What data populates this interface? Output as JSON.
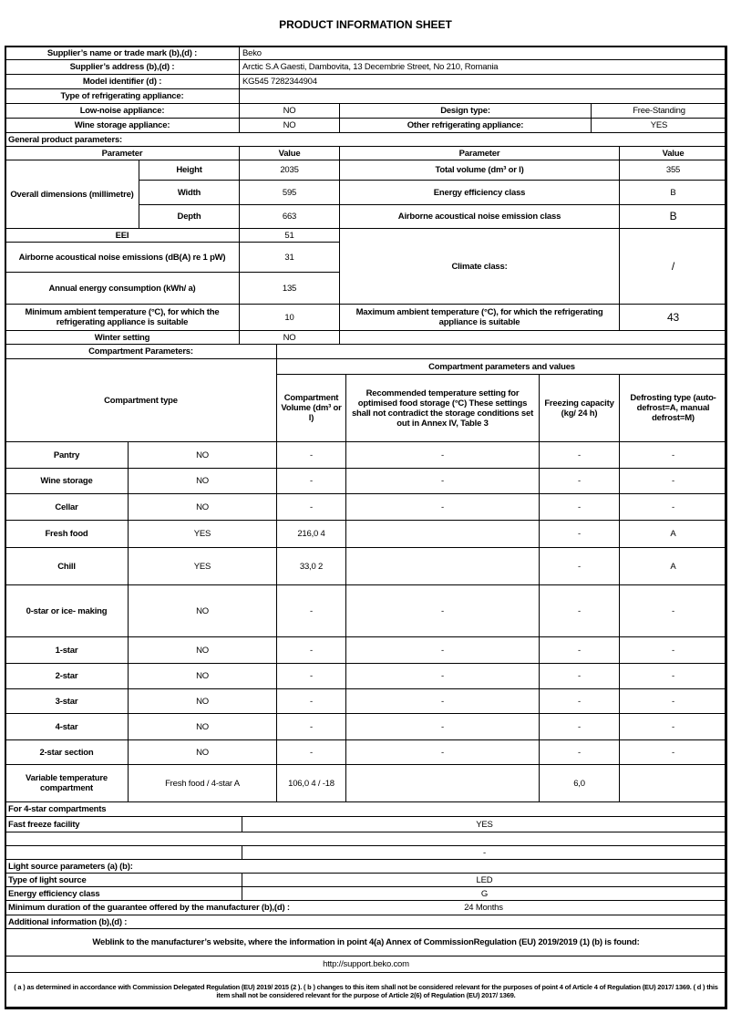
{
  "title": "PRODUCT INFORMATION SHEET",
  "supplier": {
    "name_label": "Supplier’s name or trade mark (b),(d) :",
    "name": "Beko",
    "address_label": "Supplier’s address (b),(d) :",
    "address": "Arctic S.A  Gaesti, Dambovita, 13 Decembrie Street, No 210, Romania",
    "model_label": "Model identifier (d) :",
    "model": "KG545 7282344904"
  },
  "appliance_type": {
    "label": "Type of refrigerating appliance:",
    "low_noise_label": "Low-noise appliance:",
    "low_noise": "NO",
    "design_type_label": "Design type:",
    "design_type": "Free-Standing",
    "wine_label": "Wine storage appliance:",
    "wine": "NO",
    "other_label": "Other refrigerating appliance:",
    "other": "YES"
  },
  "general": {
    "label": "General product parameters:",
    "parameter_header": "Parameter",
    "value_header": "Value",
    "dimensions_label": "Overall dimensions (millimetre)",
    "height_label": "Height",
    "height": "2035",
    "width_label": "Width",
    "width": "595",
    "depth_label": "Depth",
    "depth": "663",
    "total_volume_label": "Total volume (dm³ or l)",
    "total_volume": "355",
    "energy_class_label": "Energy efficiency class",
    "energy_class": "B",
    "noise_class_label": "Airborne acoustical noise emission class",
    "noise_class": "B",
    "eei_label": "EEI",
    "eei": "51",
    "noise_label": "Airborne acoustical noise emissions (dB(A) re 1 pW)",
    "noise": "31",
    "climate_label": "Climate class:",
    "climate": "/",
    "annual_label": "Annual energy consumption (kWh/ a)",
    "annual": "135",
    "min_temp_label": "Minimum ambient temperature (°C), for which the refrigerating appliance is suitable",
    "min_temp": "10",
    "max_temp_label": "Maximum ambient temperature (°C), for which the refrigerating appliance is suitable",
    "max_temp": "43",
    "winter_label": "Winter setting",
    "winter": "NO"
  },
  "compartments": {
    "label": "Compartment Parameters:",
    "group_header": "Compartment parameters and values",
    "type_header": "Compartment type",
    "volume_header": "Compartment Volume (dm³ or l)",
    "temp_header": "Recommended temperature setting for optimised food storage (°C) These settings shall not contradict the storage conditions set out in Annex IV, Table 3",
    "freezing_header": "Freezing capacity (kg/ 24 h)",
    "defrost_header": "Defrosting type (auto-defrost=A, manual defrost=M)",
    "rows": [
      {
        "name": "Pantry",
        "present": "NO",
        "volume": "-",
        "temp": "-",
        "freezing": "-",
        "defrost": "-"
      },
      {
        "name": "Wine storage",
        "present": "NO",
        "volume": "-",
        "temp": "-",
        "freezing": "-",
        "defrost": "-"
      },
      {
        "name": "Cellar",
        "present": "NO",
        "volume": "-",
        "temp": "-",
        "freezing": "-",
        "defrost": "-"
      },
      {
        "name": "Fresh food",
        "present": "YES",
        "volume": "216,0 4",
        "temp": "",
        "freezing": "-",
        "defrost": "A"
      },
      {
        "name": "Chill",
        "present": "YES",
        "volume": "33,0 2",
        "temp": "",
        "freezing": "-",
        "defrost": "A"
      },
      {
        "name": "0-star or ice- making",
        "present": "NO",
        "volume": "-",
        "temp": "-",
        "freezing": "-",
        "defrost": "-"
      },
      {
        "name": "1-star",
        "present": "NO",
        "volume": "-",
        "temp": "-",
        "freezing": "-",
        "defrost": "-"
      },
      {
        "name": "2-star",
        "present": "NO",
        "volume": "-",
        "temp": "-",
        "freezing": "-",
        "defrost": "-"
      },
      {
        "name": "3-star",
        "present": "NO",
        "volume": "-",
        "temp": "-",
        "freezing": "-",
        "defrost": "-"
      },
      {
        "name": "4-star",
        "present": "NO",
        "volume": "-",
        "temp": "-",
        "freezing": "-",
        "defrost": "-"
      },
      {
        "name": "2-star section",
        "present": "NO",
        "volume": "-",
        "temp": "-",
        "freezing": "-",
        "defrost": "-"
      },
      {
        "name": "Variable temperature compartment",
        "present": "Fresh food / 4-star A",
        "volume": "106,0 4 / -18",
        "temp": "",
        "freezing": "6,0",
        "defrost": ""
      }
    ]
  },
  "four_star": {
    "label": "For 4-star compartments",
    "fast_freeze_label": "Fast freeze facility",
    "fast_freeze": "YES",
    "blank_value": "-"
  },
  "light": {
    "label": "Light source parameters (a) (b):",
    "type_label": "Type of light source",
    "type": "LED",
    "class_label": "Energy efficiency class",
    "class": "G"
  },
  "guarantee": {
    "label": "Minimum duration of the guarantee offered by the manufacturer (b),(d) :",
    "value": "24 Months"
  },
  "additional": {
    "label": "Additional information (b),(d) :",
    "weblink_label": "Weblink to the manufacturer’s website, where the information in point 4(a) Annex of CommissionRegulation (EU) 2019/2019 (1) (b) is found:",
    "url": "http://support.beko.com",
    "footnote": "( a ) as determined in accordance with Commission Delegated Regulation (EU) 2019/ 2015 (2 ). ( b ) changes to this item shall not be considered relevant for the purposes of point 4 of Article 4 of Regulation (EU) 2017/ 1369. ( d ) this item shall not be considered relevant for the purpose of Article 2(6) of Regulation (EU) 2017/ 1369."
  }
}
